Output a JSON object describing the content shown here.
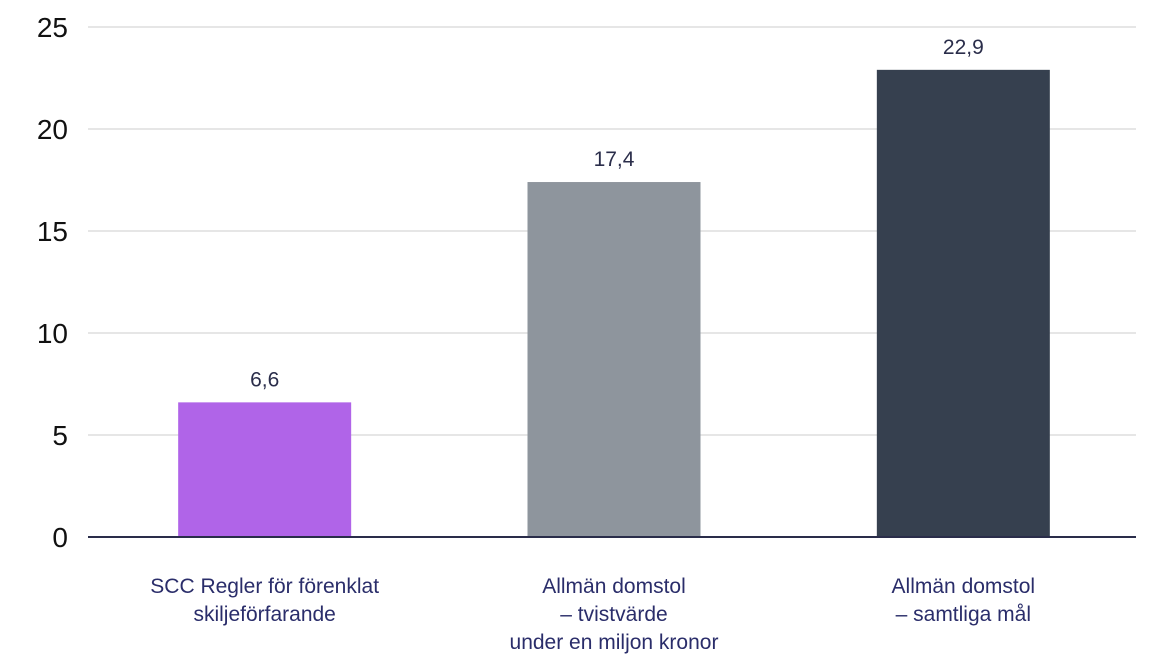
{
  "chart_data": {
    "type": "bar",
    "title": "",
    "xlabel": "",
    "ylabel": "",
    "ylim": [
      0,
      25
    ],
    "yticks": [
      0,
      5,
      10,
      15,
      20,
      25
    ],
    "grid": true,
    "legend": "none",
    "categories": [
      [
        "SCC Regler för förenklat",
        "skiljeförfarande"
      ],
      [
        "Allmän domstol",
        "– tvistvärde",
        "under en miljon kronor"
      ],
      [
        "Allmän domstol",
        "– samtliga mål"
      ]
    ],
    "values": [
      6.6,
      17.4,
      22.9
    ],
    "value_labels": [
      "6,6",
      "17,4",
      "22,9"
    ],
    "colors": [
      "#b064e8",
      "#8e959d",
      "#36404f"
    ],
    "gridline_color": "#dedede",
    "axis_color": "#2a2d4a"
  }
}
